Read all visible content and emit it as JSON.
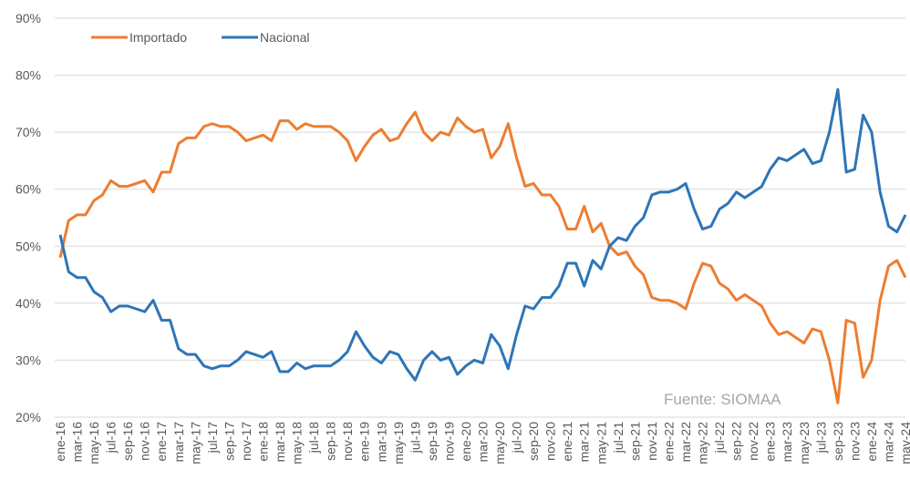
{
  "chart_data": {
    "type": "line",
    "categories": [
      "ene-16",
      null,
      "mar-16",
      null,
      "may-16",
      null,
      "jul-16",
      null,
      "sep-16",
      null,
      "nov-16",
      null,
      "ene-17",
      null,
      "mar-17",
      null,
      "may-17",
      null,
      "jul-17",
      null,
      "sep-17",
      null,
      "nov-17",
      null,
      "ene-18",
      null,
      "mar-18",
      null,
      "may-18",
      null,
      "jul-18",
      null,
      "sep-18",
      null,
      "nov-18",
      null,
      "ene-19",
      null,
      "mar-19",
      null,
      "may-19",
      null,
      "jul-19",
      null,
      "sep-19",
      null,
      "nov-19",
      null,
      "ene-20",
      null,
      "mar-20",
      null,
      "may-20",
      null,
      "jul-20",
      null,
      "sep-20",
      null,
      "nov-20",
      null,
      "ene-21",
      null,
      "mar-21",
      null,
      "may-21",
      null,
      "jul-21",
      null,
      "sep-21",
      null,
      "nov-21",
      null,
      "ene-22",
      null,
      "mar-22",
      null,
      "may-22",
      null,
      "jul-22",
      null,
      "sep-22",
      null,
      "nov-22",
      null,
      "ene-23",
      null,
      "mar-23",
      null,
      "may-23",
      null,
      "jul-23",
      null,
      "sep-23",
      null,
      "nov-23",
      null,
      "ene-24",
      null,
      "mar-24",
      null,
      "may-24"
    ],
    "series": [
      {
        "name": "Importado",
        "color": "#ed7d31",
        "values": [
          48,
          54.5,
          55.5,
          55.5,
          58,
          59,
          61.5,
          60.5,
          60.5,
          61,
          61.5,
          59.5,
          63,
          63,
          68,
          69,
          69,
          71,
          71.5,
          71,
          71,
          70,
          68.5,
          69,
          69.5,
          68.5,
          72,
          72,
          70.5,
          71.5,
          71,
          71,
          71,
          70,
          68.5,
          65,
          67.5,
          69.5,
          70.5,
          68.5,
          69,
          71.5,
          73.5,
          70,
          68.5,
          70,
          69.5,
          72.5,
          71,
          70,
          70.5,
          65.5,
          67.5,
          71.5,
          65.5,
          60.5,
          61,
          59,
          59,
          57,
          53,
          53,
          57,
          52.5,
          54,
          50,
          48.5,
          49,
          46.5,
          45,
          41,
          40.5,
          40.5,
          40,
          39,
          43.5,
          47,
          46.5,
          43.5,
          42.5,
          40.5,
          41.5,
          40.5,
          39.5,
          36.5,
          34.5,
          35,
          34,
          33,
          35.5,
          35,
          30,
          22.5,
          37,
          36.5,
          27,
          30,
          40.5,
          46.5,
          47.5,
          44.5
        ]
      },
      {
        "name": "Nacional",
        "color": "#2e75b6",
        "values": [
          52,
          45.5,
          44.5,
          44.5,
          42,
          41,
          38.5,
          39.5,
          39.5,
          39,
          38.5,
          40.5,
          37,
          37,
          32,
          31,
          31,
          29,
          28.5,
          29,
          29,
          30,
          31.5,
          31,
          30.5,
          31.5,
          28,
          28,
          29.5,
          28.5,
          29,
          29,
          29,
          30,
          31.5,
          35,
          32.5,
          30.5,
          29.5,
          31.5,
          31,
          28.5,
          26.5,
          30,
          31.5,
          30,
          30.5,
          27.5,
          29,
          30,
          29.5,
          34.5,
          32.5,
          28.5,
          34.5,
          39.5,
          39,
          41,
          41,
          43,
          47,
          47,
          43,
          47.5,
          46,
          50,
          51.5,
          51,
          53.5,
          55,
          59,
          59.5,
          59.5,
          60,
          61,
          56.5,
          53,
          53.5,
          56.5,
          57.5,
          59.5,
          58.5,
          59.5,
          60.5,
          63.5,
          65.5,
          65,
          66,
          67,
          64.5,
          65,
          70,
          77.5,
          63,
          63.5,
          73,
          70,
          59.5,
          53.5,
          52.5,
          55.5
        ]
      }
    ],
    "ylim": [
      20,
      90
    ],
    "yticks": [
      {
        "value": 20,
        "label": "20%"
      },
      {
        "value": 30,
        "label": "30%"
      },
      {
        "value": 40,
        "label": "40%"
      },
      {
        "value": 50,
        "label": "50%"
      },
      {
        "value": 60,
        "label": "60%"
      },
      {
        "value": 70,
        "label": "70%"
      },
      {
        "value": 80,
        "label": "80%"
      },
      {
        "value": 90,
        "label": "90%"
      }
    ],
    "grid": true,
    "legend": "top-left",
    "annotation": "Fuente: SIOMAA"
  }
}
